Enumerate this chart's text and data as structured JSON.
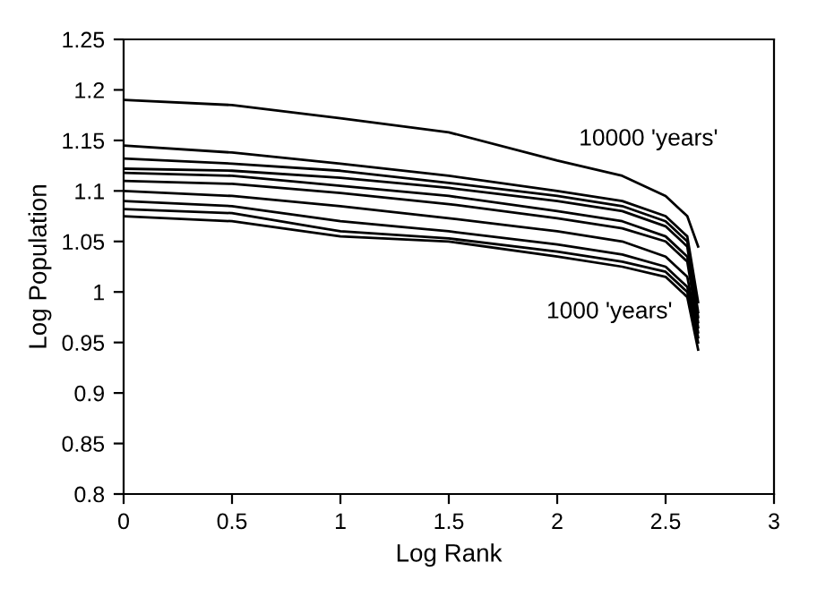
{
  "chart_data": {
    "type": "line",
    "xlabel": "Log Rank",
    "ylabel": "Log Population",
    "x": [
      0,
      0.5,
      1,
      1.5,
      2,
      2.3,
      2.5,
      2.6,
      2.65
    ],
    "series": [
      {
        "color": "#000000",
        "values": [
          1.19,
          1.185,
          1.172,
          1.158,
          1.13,
          1.115,
          1.095,
          1.075,
          1.045
        ]
      },
      {
        "color": "#000000",
        "values": [
          1.145,
          1.138,
          1.127,
          1.115,
          1.1,
          1.09,
          1.075,
          1.055,
          0.99
        ]
      },
      {
        "color": "#000000",
        "values": [
          1.132,
          1.127,
          1.12,
          1.108,
          1.095,
          1.085,
          1.07,
          1.05,
          0.98
        ]
      },
      {
        "color": "#000000",
        "values": [
          1.122,
          1.12,
          1.113,
          1.103,
          1.09,
          1.08,
          1.065,
          1.045,
          0.975
        ]
      },
      {
        "color": "#000000",
        "values": [
          1.118,
          1.115,
          1.105,
          1.095,
          1.08,
          1.07,
          1.055,
          1.035,
          0.97
        ]
      },
      {
        "color": "#000000",
        "values": [
          1.11,
          1.107,
          1.098,
          1.087,
          1.073,
          1.063,
          1.05,
          1.03,
          0.965
        ]
      },
      {
        "color": "#000000",
        "values": [
          1.1,
          1.095,
          1.085,
          1.073,
          1.06,
          1.05,
          1.035,
          1.015,
          0.96
        ]
      },
      {
        "color": "#000000",
        "values": [
          1.09,
          1.085,
          1.07,
          1.06,
          1.047,
          1.037,
          1.025,
          1.005,
          0.955
        ]
      },
      {
        "color": "#000000",
        "values": [
          1.082,
          1.078,
          1.06,
          1.053,
          1.04,
          1.03,
          1.02,
          1.0,
          0.95
        ]
      },
      {
        "color": "#000000",
        "values": [
          1.075,
          1.07,
          1.055,
          1.05,
          1.035,
          1.025,
          1.015,
          0.995,
          0.943
        ]
      }
    ],
    "annotations": [
      "10000 'years'",
      "1000 'years'"
    ],
    "xlim": [
      0,
      3
    ],
    "xticks": [
      0,
      0.5,
      1,
      1.5,
      2,
      2.5,
      3
    ],
    "ylim": [
      0.8,
      1.25
    ],
    "yticks": [
      0.8,
      0.85,
      0.9,
      0.95,
      1,
      1.05,
      1.1,
      1.15,
      1.2,
      1.25
    ],
    "grid": false,
    "legend": false,
    "marker": "none",
    "line_style": "solid"
  }
}
